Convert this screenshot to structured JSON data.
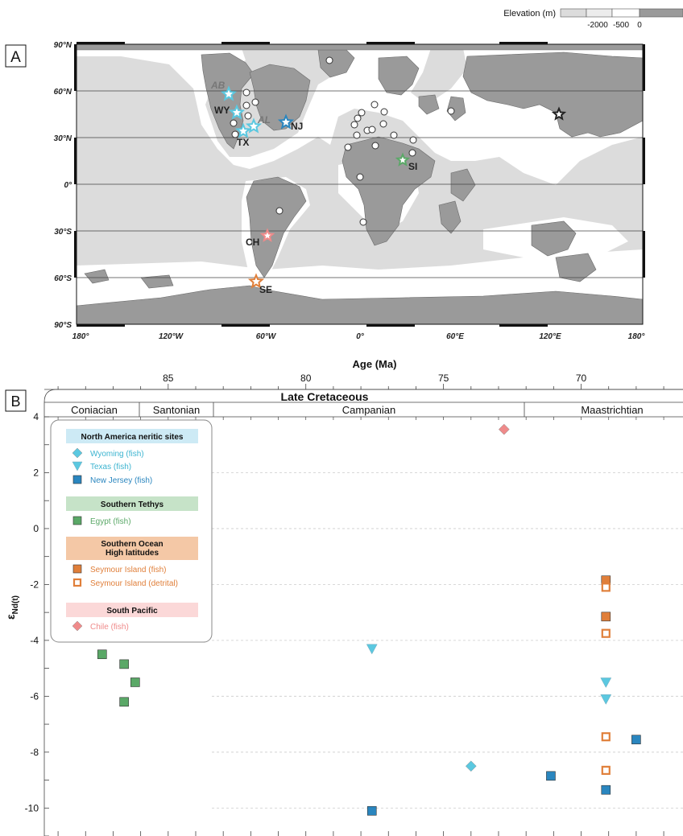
{
  "panel_a": {
    "label": "A",
    "elevation_legend": {
      "title": "Elevation (m)",
      "ticks": [
        "-2000",
        "-500",
        "0"
      ],
      "colors": [
        "#dcdcdc",
        "#ececec",
        "#ffffff",
        "#9a9a9a"
      ]
    },
    "lat_labels": [
      "90°N",
      "60°N",
      "30°N",
      "0°",
      "30°S",
      "60°S",
      "90°S"
    ],
    "lon_labels": [
      "180°",
      "120°W",
      "60°W",
      "0°",
      "60°E",
      "120°E",
      "180°"
    ],
    "sites": [
      "AB",
      "WY",
      "AL",
      "NJ",
      "TX",
      "SI",
      "CH",
      "SE"
    ],
    "colors": {
      "land": "#9a9a9a",
      "shelf": "#ffffff",
      "ocean": "#dcdcdc",
      "light_blue": "#5bc8e0",
      "dark_blue": "#2a86bf",
      "green": "#5aa867",
      "orange": "#e07f3a",
      "pink": "#ef8a8a"
    }
  },
  "panel_b": {
    "label": "B",
    "top_axis_title": "Age (Ma)",
    "top_ticks": [
      "85",
      "80",
      "75",
      "70"
    ],
    "epoch": "Late Cretaceous",
    "stages": [
      "Coniacian",
      "Santonian",
      "Campanian",
      "Maastrichtian"
    ],
    "y_ticks": [
      "4",
      "2",
      "0",
      "-2",
      "-4",
      "-6",
      "-8",
      "-10"
    ],
    "y_label_main": "ε",
    "y_label_sub": "Nd(t)",
    "legend": {
      "groups": [
        {
          "title": "North America neritic sites",
          "bg": "#cdeaf5",
          "items": [
            "Wyoming (fish)",
            "Texas (fish)",
            "New Jersey (fish)"
          ]
        },
        {
          "title": "Southern Tethys",
          "bg": "#c6e3c8",
          "items": [
            "Egypt (fish)"
          ]
        },
        {
          "title": "Southern Ocean\nHigh latitudes",
          "bg": "#f4c8a6",
          "items": [
            "Seymour Island (fish)",
            "Seymour Island (detrital)"
          ]
        },
        {
          "title": "South Pacific",
          "bg": "#fbd8d8",
          "items": [
            "Chile (fish)"
          ]
        }
      ]
    }
  },
  "chart_data": {
    "type": "scatter",
    "xlabel": "Age (Ma)",
    "ylabel": "εNd(t)",
    "xlim": [
      89.5,
      66.3
    ],
    "ylim": [
      -11,
      4
    ],
    "series": [
      {
        "name": "Wyoming (fish)",
        "marker": "diamond",
        "color": "#5bc8e0",
        "points": [
          [
            74.0,
            -8.5
          ]
        ]
      },
      {
        "name": "Texas (fish)",
        "marker": "triangle-down",
        "color": "#5bc8e0",
        "points": [
          [
            77.6,
            -4.3
          ],
          [
            69.1,
            -5.5
          ],
          [
            69.1,
            -6.1
          ]
        ]
      },
      {
        "name": "New Jersey (fish)",
        "marker": "square",
        "color": "#2a86bf",
        "points": [
          [
            77.6,
            -10.1
          ],
          [
            71.1,
            -8.85
          ],
          [
            69.1,
            -9.35
          ],
          [
            68.0,
            -7.55
          ]
        ]
      },
      {
        "name": "Egypt (fish)",
        "marker": "square",
        "color": "#5aa867",
        "points": [
          [
            87.4,
            -4.5
          ],
          [
            86.6,
            -4.85
          ],
          [
            86.2,
            -5.5
          ],
          [
            86.6,
            -6.2
          ]
        ]
      },
      {
        "name": "Seymour Island (fish)",
        "marker": "square",
        "color": "#e07f3a",
        "points": [
          [
            69.1,
            -1.85
          ],
          [
            69.1,
            -3.15
          ]
        ]
      },
      {
        "name": "Seymour Island (detrital)",
        "marker": "open-square",
        "color": "#e07f3a",
        "points": [
          [
            69.1,
            -2.1
          ],
          [
            69.1,
            -3.75
          ],
          [
            69.1,
            -7.45
          ],
          [
            69.1,
            -8.65
          ]
        ]
      },
      {
        "name": "Chile (fish)",
        "marker": "diamond",
        "color": "#ef8a8a",
        "points": [
          [
            72.8,
            3.55
          ]
        ]
      }
    ]
  }
}
